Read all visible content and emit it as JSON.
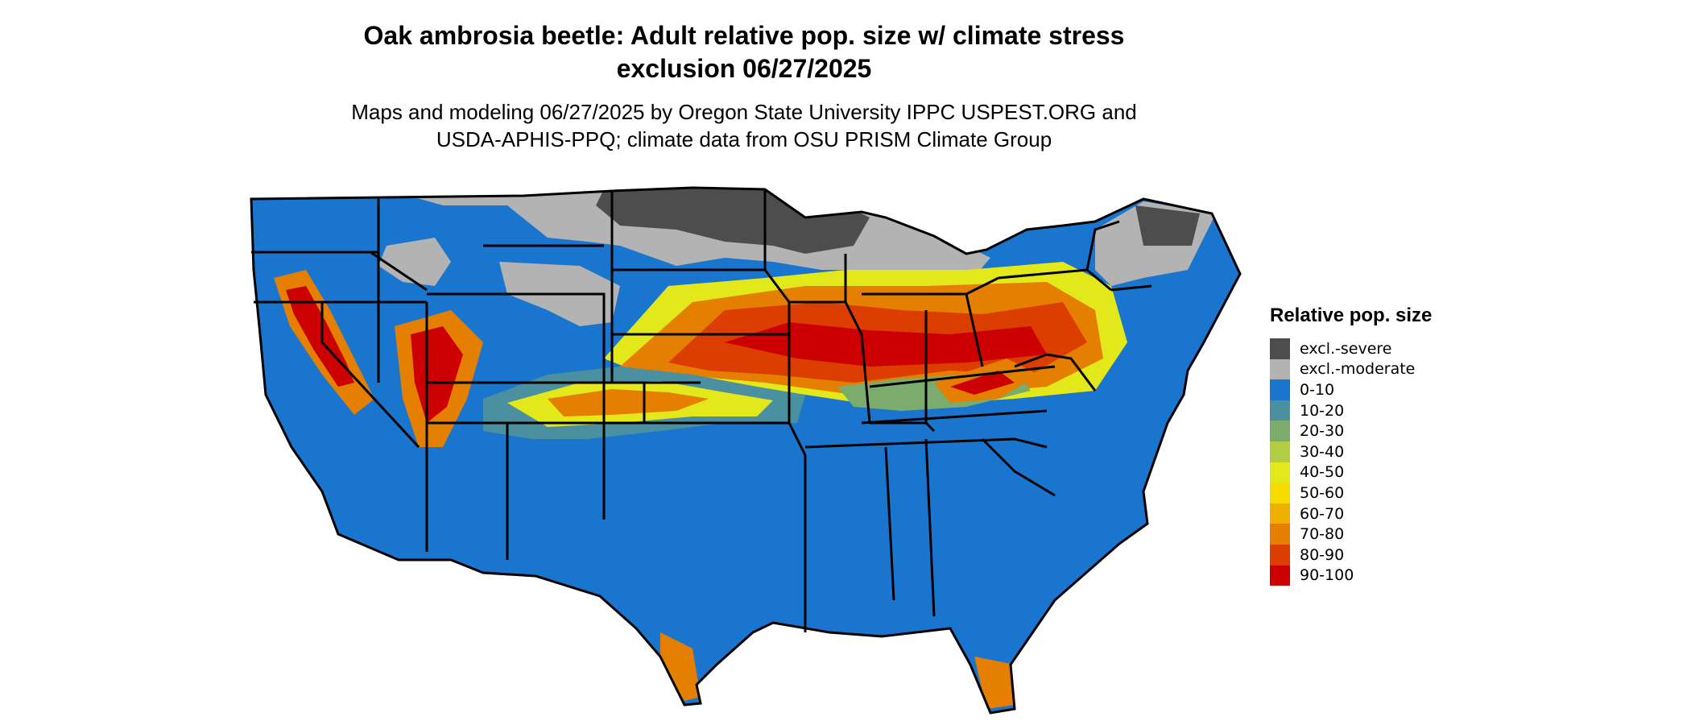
{
  "map": {
    "title_line1": "Oak ambrosia beetle: Adult relative pop. size w/ climate stress",
    "title_line2": "exclusion 06/27/2025",
    "subtitle_line1": "Maps and modeling 06/27/2025 by Oregon State University IPPC USPEST.ORG and",
    "subtitle_line2": "USDA-APHIS-PPQ; climate data from OSU PRISM Climate Group",
    "region": "Contiguous United States",
    "legend": {
      "title": "Relative pop. size",
      "items": [
        {
          "label": "excl.-severe",
          "color": "#4d4d4d"
        },
        {
          "label": "excl.-moderate",
          "color": "#b3b3b3"
        },
        {
          "label": "0-10",
          "color": "#1a75cf"
        },
        {
          "label": "10-20",
          "color": "#4a90a0"
        },
        {
          "label": "20-30",
          "color": "#7cab6e"
        },
        {
          "label": "30-40",
          "color": "#b2cc44"
        },
        {
          "label": "40-50",
          "color": "#e2e81a"
        },
        {
          "label": "50-60",
          "color": "#f7dc00"
        },
        {
          "label": "60-70",
          "color": "#f0b000"
        },
        {
          "label": "70-80",
          "color": "#e57f00"
        },
        {
          "label": "80-90",
          "color": "#dc3d00"
        },
        {
          "label": "90-100",
          "color": "#cc0000"
        }
      ]
    }
  }
}
